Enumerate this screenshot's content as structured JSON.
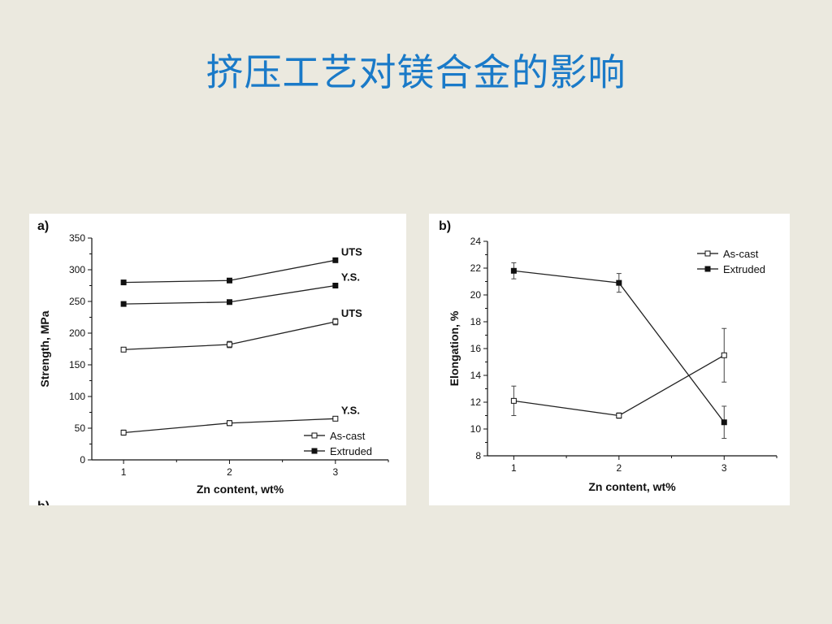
{
  "slide": {
    "title": "挤压工艺对镁合金的影响"
  },
  "chart_data": [
    {
      "type": "line",
      "panel_label": "a)",
      "cut_label": "b)",
      "xlabel": "Zn content, wt%",
      "ylabel": "Strength, MPa",
      "x": [
        1,
        2,
        3
      ],
      "xlim": [
        0.7,
        3.5
      ],
      "ylim": [
        0,
        350
      ],
      "yticks": [
        0,
        50,
        100,
        150,
        200,
        250,
        300,
        350
      ],
      "xticks": [
        1,
        2,
        3
      ],
      "grid": false,
      "legend_position": "bottom-right",
      "series": [
        {
          "name": "Extruded",
          "label": "UTS",
          "marker": "filled",
          "values": [
            280,
            283,
            315
          ],
          "error": [
            0,
            0,
            0
          ]
        },
        {
          "name": "Extruded",
          "label": "Y.S.",
          "marker": "filled",
          "values": [
            246,
            249,
            275
          ],
          "error": [
            0,
            0,
            0
          ]
        },
        {
          "name": "As-cast",
          "label": "UTS",
          "marker": "open",
          "values": [
            174,
            182,
            218
          ],
          "error": [
            2,
            5,
            5
          ]
        },
        {
          "name": "As-cast",
          "label": "Y.S.",
          "marker": "open",
          "values": [
            43,
            58,
            65
          ],
          "error": [
            4,
            4,
            2
          ]
        }
      ],
      "legend": [
        {
          "name": "As-cast",
          "marker": "open"
        },
        {
          "name": "Extruded",
          "marker": "filled"
        }
      ]
    },
    {
      "type": "line",
      "panel_label": "b)",
      "xlabel": "Zn content, wt%",
      "ylabel": "Elongation, %",
      "x": [
        1,
        2,
        3
      ],
      "xlim": [
        0.75,
        3.5
      ],
      "ylim": [
        8,
        24
      ],
      "yticks": [
        8,
        10,
        12,
        14,
        16,
        18,
        20,
        22,
        24
      ],
      "xticks": [
        1,
        2,
        3
      ],
      "grid": false,
      "legend_position": "top-right",
      "series": [
        {
          "name": "As-cast",
          "marker": "open",
          "values": [
            12.1,
            11.0,
            15.5
          ],
          "error": [
            1.1,
            0.2,
            2.0
          ]
        },
        {
          "name": "Extruded",
          "marker": "filled",
          "values": [
            21.8,
            20.9,
            10.5
          ],
          "error": [
            0.6,
            0.7,
            1.2
          ]
        }
      ],
      "legend": [
        {
          "name": "As-cast",
          "marker": "open"
        },
        {
          "name": "Extruded",
          "marker": "filled"
        }
      ]
    }
  ]
}
